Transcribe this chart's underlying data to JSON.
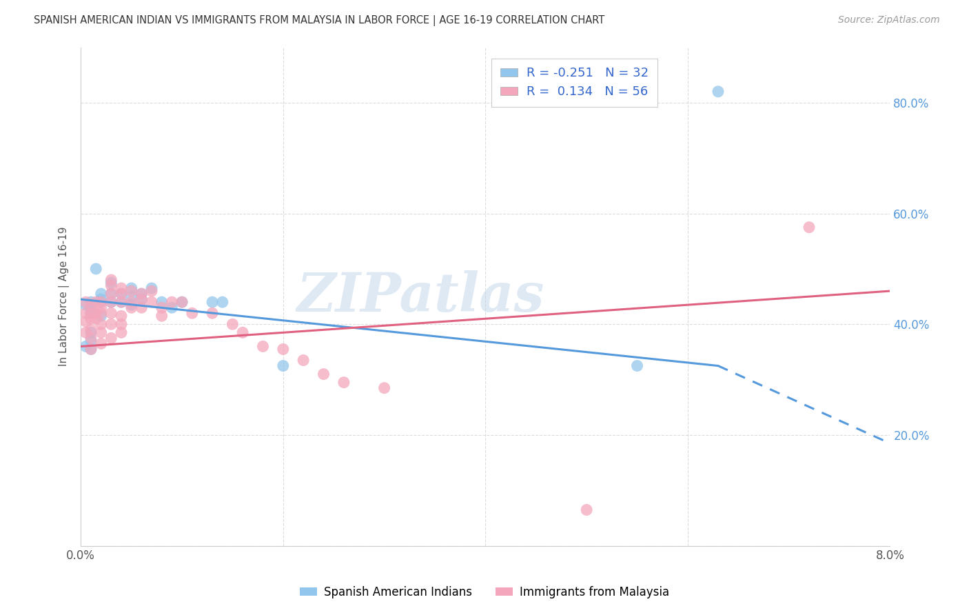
{
  "title": "SPANISH AMERICAN INDIAN VS IMMIGRANTS FROM MALAYSIA IN LABOR FORCE | AGE 16-19 CORRELATION CHART",
  "source": "Source: ZipAtlas.com",
  "ylabel": "In Labor Force | Age 16-19",
  "xlim": [
    0.0,
    0.08
  ],
  "ylim": [
    0.0,
    0.9
  ],
  "yticks": [
    0.0,
    0.2,
    0.4,
    0.6,
    0.8
  ],
  "xticks": [
    0.0,
    0.02,
    0.04,
    0.06,
    0.08
  ],
  "blue_R": -0.251,
  "blue_N": 32,
  "pink_R": 0.134,
  "pink_N": 56,
  "blue_label": "Spanish American Indians",
  "pink_label": "Immigrants from Malaysia",
  "blue_color": "#93C6EC",
  "pink_color": "#F4A7BC",
  "blue_line_color": "#5599DD",
  "pink_line_color": "#E06080",
  "watermark": "ZIPatlas",
  "background_color": "#FFFFFF",
  "grid_color": "#CCCCCC",
  "blue_scatter_x": [
    0.0005,
    0.0005,
    0.001,
    0.001,
    0.001,
    0.001,
    0.001,
    0.001,
    0.0015,
    0.002,
    0.002,
    0.002,
    0.002,
    0.003,
    0.003,
    0.003,
    0.004,
    0.004,
    0.005,
    0.005,
    0.005,
    0.006,
    0.006,
    0.007,
    0.008,
    0.009,
    0.01,
    0.013,
    0.014,
    0.02,
    0.055,
    0.063
  ],
  "blue_scatter_y": [
    0.435,
    0.36,
    0.44,
    0.43,
    0.42,
    0.385,
    0.37,
    0.355,
    0.5,
    0.455,
    0.445,
    0.44,
    0.415,
    0.475,
    0.455,
    0.44,
    0.455,
    0.44,
    0.465,
    0.45,
    0.435,
    0.455,
    0.445,
    0.465,
    0.44,
    0.43,
    0.44,
    0.44,
    0.44,
    0.325,
    0.325,
    0.82
  ],
  "pink_scatter_x": [
    0.0005,
    0.0005,
    0.0005,
    0.0005,
    0.001,
    0.001,
    0.001,
    0.001,
    0.001,
    0.001,
    0.0015,
    0.0015,
    0.0015,
    0.002,
    0.002,
    0.002,
    0.002,
    0.002,
    0.002,
    0.003,
    0.003,
    0.003,
    0.003,
    0.003,
    0.003,
    0.003,
    0.004,
    0.004,
    0.004,
    0.004,
    0.004,
    0.004,
    0.005,
    0.005,
    0.005,
    0.006,
    0.006,
    0.006,
    0.007,
    0.007,
    0.008,
    0.008,
    0.009,
    0.01,
    0.011,
    0.013,
    0.015,
    0.016,
    0.018,
    0.02,
    0.022,
    0.024,
    0.026,
    0.03,
    0.05,
    0.072
  ],
  "pink_scatter_y": [
    0.44,
    0.42,
    0.405,
    0.385,
    0.435,
    0.42,
    0.41,
    0.39,
    0.375,
    0.355,
    0.44,
    0.42,
    0.41,
    0.44,
    0.43,
    0.42,
    0.4,
    0.385,
    0.365,
    0.48,
    0.47,
    0.455,
    0.44,
    0.42,
    0.4,
    0.375,
    0.465,
    0.455,
    0.44,
    0.415,
    0.4,
    0.385,
    0.46,
    0.44,
    0.43,
    0.455,
    0.445,
    0.43,
    0.46,
    0.44,
    0.43,
    0.415,
    0.44,
    0.44,
    0.42,
    0.42,
    0.4,
    0.385,
    0.36,
    0.355,
    0.335,
    0.31,
    0.295,
    0.285,
    0.065,
    0.575
  ],
  "blue_line_x0": 0.0,
  "blue_line_y0": 0.445,
  "blue_line_x1": 0.063,
  "blue_line_y1": 0.325,
  "blue_line_xdash": 0.063,
  "blue_line_ydash": 0.325,
  "blue_line_xend": 0.08,
  "blue_line_yend": 0.185,
  "pink_line_x0": 0.0,
  "pink_line_y0": 0.36,
  "pink_line_x1": 0.08,
  "pink_line_y1": 0.46
}
